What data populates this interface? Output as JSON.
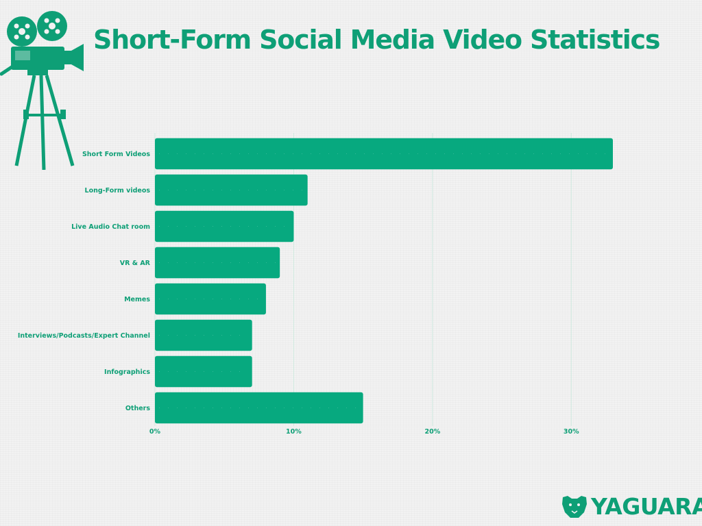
{
  "title": "Short-Form Social Media Video Statistics",
  "brand": {
    "name": "YAGUARA",
    "icon": "jaguar-head-icon"
  },
  "camera_icon": "film-camera-icon",
  "colors": {
    "accent": "#0e9f76",
    "bar": "#07a97f",
    "background": "#f2f2f2",
    "grid": "#cfe9df"
  },
  "chart_data": {
    "type": "bar",
    "orientation": "horizontal",
    "title": "Short-Form Social Media Video Statistics",
    "categories": [
      "Short Form Videos",
      "Long-Form videos",
      "Live Audio Chat room",
      "VR & AR",
      "Memes",
      "Interviews/Podcasts/Expert Channel",
      "Infographics",
      "Others"
    ],
    "values": [
      33,
      11,
      10,
      9,
      8,
      7,
      7,
      15
    ],
    "unit": "%",
    "xlim": [
      0,
      33
    ],
    "xticks": [
      0,
      10,
      20,
      30
    ],
    "xtick_labels": [
      "0%",
      "10%",
      "20%",
      "30%"
    ],
    "xlabel": "",
    "ylabel": "",
    "grid": true,
    "legend": "none"
  }
}
